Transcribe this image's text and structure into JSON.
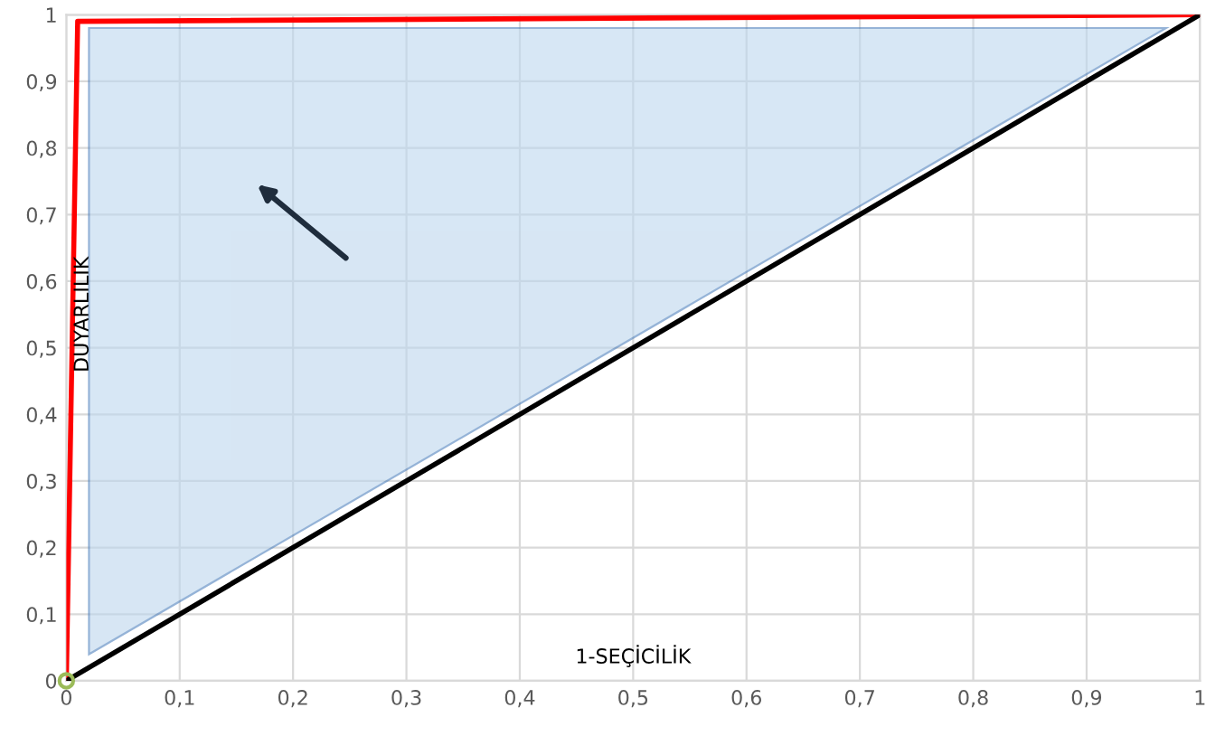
{
  "chart_data": {
    "type": "line",
    "xlabel": "1-SEÇİCİLİK",
    "ylabel": "DUYARLILIK",
    "xlim": [
      0,
      1
    ],
    "ylim": [
      0,
      1
    ],
    "xticks": [
      0,
      {
        "value": 0.1,
        "label": "0,1"
      },
      {
        "value": 0.2,
        "label": "0,2"
      },
      {
        "value": 0.3,
        "label": "0,3"
      },
      {
        "value": 0.4,
        "label": "0,4"
      },
      {
        "value": 0.5,
        "label": "0,5"
      },
      {
        "value": 0.6,
        "label": "0,6"
      },
      {
        "value": 0.7,
        "label": "0,7"
      },
      {
        "value": 0.8,
        "label": "0,8"
      },
      {
        "value": 0.9,
        "label": "0,9"
      },
      1
    ],
    "yticks": [
      0,
      {
        "value": 0.1,
        "label": "0,1"
      },
      {
        "value": 0.2,
        "label": "0,2"
      },
      {
        "value": 0.3,
        "label": "0,3"
      },
      {
        "value": 0.4,
        "label": "0,4"
      },
      {
        "value": 0.5,
        "label": "0,5"
      },
      {
        "value": 0.6,
        "label": "0,6"
      },
      {
        "value": 0.7,
        "label": "0,7"
      },
      {
        "value": 0.8,
        "label": "0,8"
      },
      {
        "value": 0.9,
        "label": "0,9"
      },
      1
    ],
    "grid": true,
    "legend": false,
    "series": [
      {
        "type": "area",
        "color": "#bdd7ee",
        "x": [
          0.02,
          0.02,
          0.97
        ],
        "values": [
          0.04,
          0.98,
          0.98
        ]
      },
      {
        "color": "#ff0000",
        "x": [
          0,
          0.01,
          1
        ],
        "values": [
          0,
          0.99,
          1
        ]
      },
      {
        "color": "#000000",
        "x": [
          0,
          1
        ],
        "values": [
          0,
          1
        ]
      },
      {
        "type": "scatter",
        "color": "#9bbb59",
        "x": [
          0
        ],
        "values": [
          0
        ]
      }
    ]
  }
}
